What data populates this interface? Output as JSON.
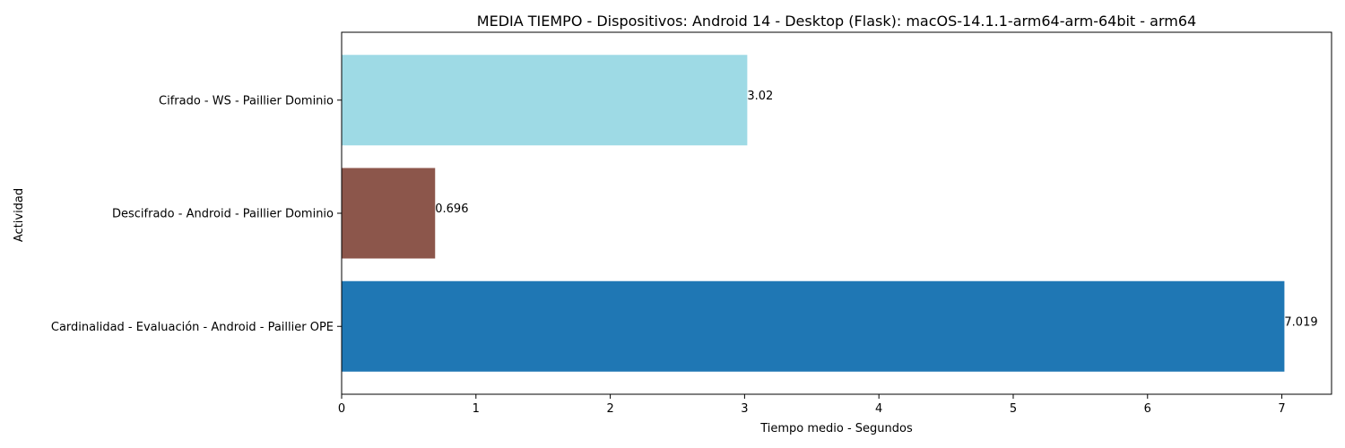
{
  "chart_data": {
    "type": "bar",
    "orientation": "horizontal",
    "title": "MEDIA TIEMPO - Dispositivos: Android 14 - Desktop (Flask): macOS-14.1.1-arm64-arm-64bit - arm64",
    "xlabel": "Tiempo medio - Segundos",
    "ylabel": "Actividad",
    "categories": [
      "Cardinalidad - Evaluación - Android - Paillier OPE",
      "Descifrado - Android - Paillier Dominio",
      "Cifrado - WS - Paillier Dominio"
    ],
    "values": [
      7.019,
      0.696,
      3.02
    ],
    "value_labels": [
      "7.019",
      "0.696",
      "3.02"
    ],
    "colors": [
      "#1f77b4",
      "#8c564b",
      "#9edae5"
    ],
    "xlim": [
      0,
      7.37
    ],
    "xticks": [
      0,
      1,
      2,
      3,
      4,
      5,
      6,
      7
    ],
    "xtick_labels": [
      "0",
      "1",
      "2",
      "3",
      "4",
      "5",
      "6",
      "7"
    ],
    "grid": false,
    "legend": "none"
  }
}
